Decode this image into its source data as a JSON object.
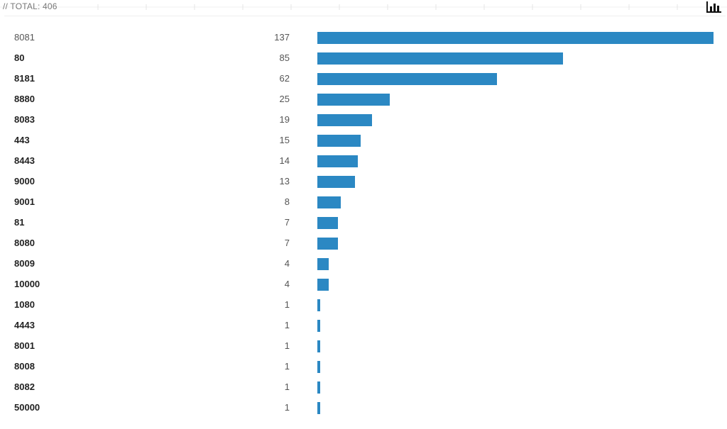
{
  "header": {
    "total_label": "// TOTAL: 406"
  },
  "toolbar": {
    "icon": "bar-chart-icon"
  },
  "colors": {
    "bar": "#2b88c3",
    "label": "#222222",
    "count": "#555555"
  },
  "chart_data": {
    "type": "bar",
    "orientation": "horizontal",
    "categories": [
      "8081",
      "80",
      "8181",
      "8880",
      "8083",
      "443",
      "8443",
      "9000",
      "9001",
      "81",
      "8080",
      "8009",
      "10000",
      "1080",
      "4443",
      "8001",
      "8008",
      "8082",
      "50000"
    ],
    "values": [
      137,
      85,
      62,
      25,
      19,
      15,
      14,
      13,
      8,
      7,
      7,
      4,
      4,
      1,
      1,
      1,
      1,
      1,
      1
    ],
    "xlim": [
      0,
      137
    ],
    "grid": false
  }
}
